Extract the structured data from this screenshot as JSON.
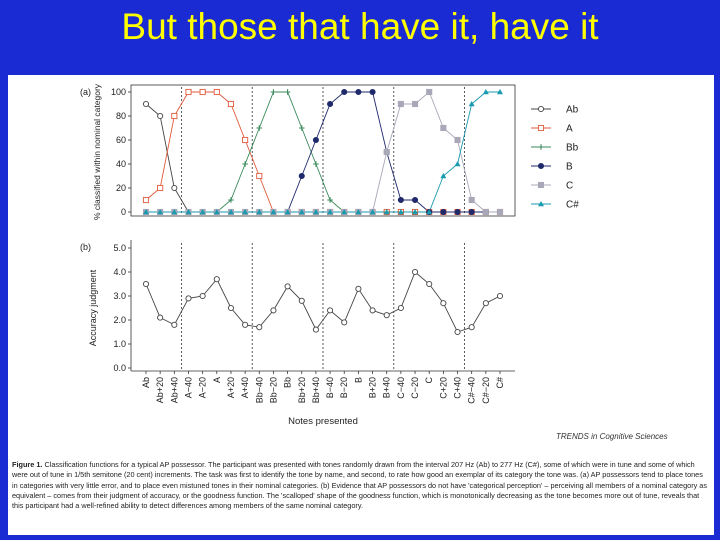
{
  "slide": {
    "title": "But those that have it, have it"
  },
  "figure": {
    "journal": "TRENDS in Cognitive Sciences",
    "caption_label": "Figure 1.",
    "caption_text": "Classification functions for a typical AP possessor. The participant was presented with tones randomly drawn from the interval 207 Hz (Ab) to 277 Hz (C#), some of which were in tune and some of which were out of tune in 1/5th semitone (20 cent) increments. The task was first to identify the tone by name, and second, to rate how good an exemplar of its category the tone was. (a) AP possessors tend to place tones in categories with very little error, and to place even mistuned tones in their nominal categories. (b) Evidence that AP possessors do not have 'categorical perception' – perceiving all members of a nominal category as equivalent – comes from their judgment of accuracy, or the goodness function. The 'scalloped' shape of the goodness function, which is monotonically decreasing as the tone becomes more out of tune, reveals that this participant had a well-refined ability to detect differences among members of the same nominal category."
  },
  "chart_data": [
    {
      "type": "line",
      "panel_label": "(a)",
      "ylabel": "% classified within nominal category",
      "ylim": [
        0,
        100
      ],
      "yticks": [
        "0",
        "20",
        "40",
        "60",
        "80",
        "100"
      ],
      "xticks": [
        "Ab",
        "Ab+20",
        "Ab+40",
        "A−40",
        "A−20",
        "A",
        "A+20",
        "A+40",
        "Bb−40",
        "Bb−20",
        "Bb",
        "Bb+20",
        "Bb+40",
        "B−40",
        "B−20",
        "B",
        "B+20",
        "B+40",
        "C−40",
        "C−20",
        "C",
        "C+20",
        "C+40",
        "C#−40",
        "C#−20",
        "C#"
      ],
      "dividers": [
        2.5,
        7.5,
        12.5,
        17.5,
        22.5
      ],
      "legend_position": "right",
      "series": [
        {
          "name": "Ab",
          "color": "#444444",
          "marker": "circle-open",
          "values": [
            90,
            80,
            20,
            0,
            0,
            0,
            0,
            0,
            0,
            0,
            0,
            0,
            0,
            0,
            0,
            0,
            0,
            0,
            0,
            0,
            0,
            0,
            0,
            0,
            0,
            0
          ]
        },
        {
          "name": "A",
          "color": "#e05a3c",
          "marker": "square-open",
          "values": [
            10,
            20,
            80,
            100,
            100,
            100,
            90,
            60,
            30,
            0,
            0,
            0,
            0,
            0,
            0,
            0,
            0,
            0,
            0,
            0,
            0,
            0,
            0,
            0,
            0,
            0
          ]
        },
        {
          "name": "Bb",
          "color": "#3a8a5a",
          "marker": "plus",
          "values": [
            0,
            0,
            0,
            0,
            0,
            0,
            10,
            40,
            70,
            100,
            100,
            70,
            40,
            10,
            0,
            0,
            0,
            0,
            0,
            0,
            0,
            0,
            0,
            0,
            0,
            0
          ]
        },
        {
          "name": "B",
          "color": "#1f2a6b",
          "marker": "circle-filled",
          "values": [
            0,
            0,
            0,
            0,
            0,
            0,
            0,
            0,
            0,
            0,
            0,
            30,
            60,
            90,
            100,
            100,
            100,
            50,
            10,
            10,
            0,
            0,
            0,
            0,
            0,
            0
          ]
        },
        {
          "name": "C",
          "color": "#a8a8b8",
          "marker": "square-filled",
          "values": [
            0,
            0,
            0,
            0,
            0,
            0,
            0,
            0,
            0,
            0,
            0,
            0,
            0,
            0,
            0,
            0,
            0,
            50,
            90,
            90,
            100,
            70,
            60,
            10,
            0,
            0
          ]
        },
        {
          "name": "C#",
          "color": "#1a9ab0",
          "marker": "triangle-filled",
          "values": [
            0,
            0,
            0,
            0,
            0,
            0,
            0,
            0,
            0,
            0,
            0,
            0,
            0,
            0,
            0,
            0,
            0,
            0,
            0,
            0,
            0,
            30,
            40,
            90,
            100,
            100
          ]
        }
      ]
    },
    {
      "type": "line",
      "panel_label": "(b)",
      "ylabel": "Accuracy judgment",
      "xlabel": "Notes presented",
      "ylim": [
        0,
        5
      ],
      "yticks": [
        "0.0",
        "1.0",
        "2.0",
        "3.0",
        "4.0",
        "5.0"
      ],
      "series": [
        {
          "name": "",
          "color": "#444444",
          "marker": "circle-open",
          "values": [
            3.5,
            2.1,
            1.8,
            2.9,
            3.0,
            3.7,
            2.5,
            1.8,
            1.7,
            2.4,
            3.4,
            2.8,
            1.6,
            2.4,
            1.9,
            3.3,
            2.4,
            2.2,
            2.5,
            4.0,
            3.5,
            2.7,
            1.5,
            1.7,
            2.7,
            3.0
          ]
        }
      ]
    }
  ]
}
